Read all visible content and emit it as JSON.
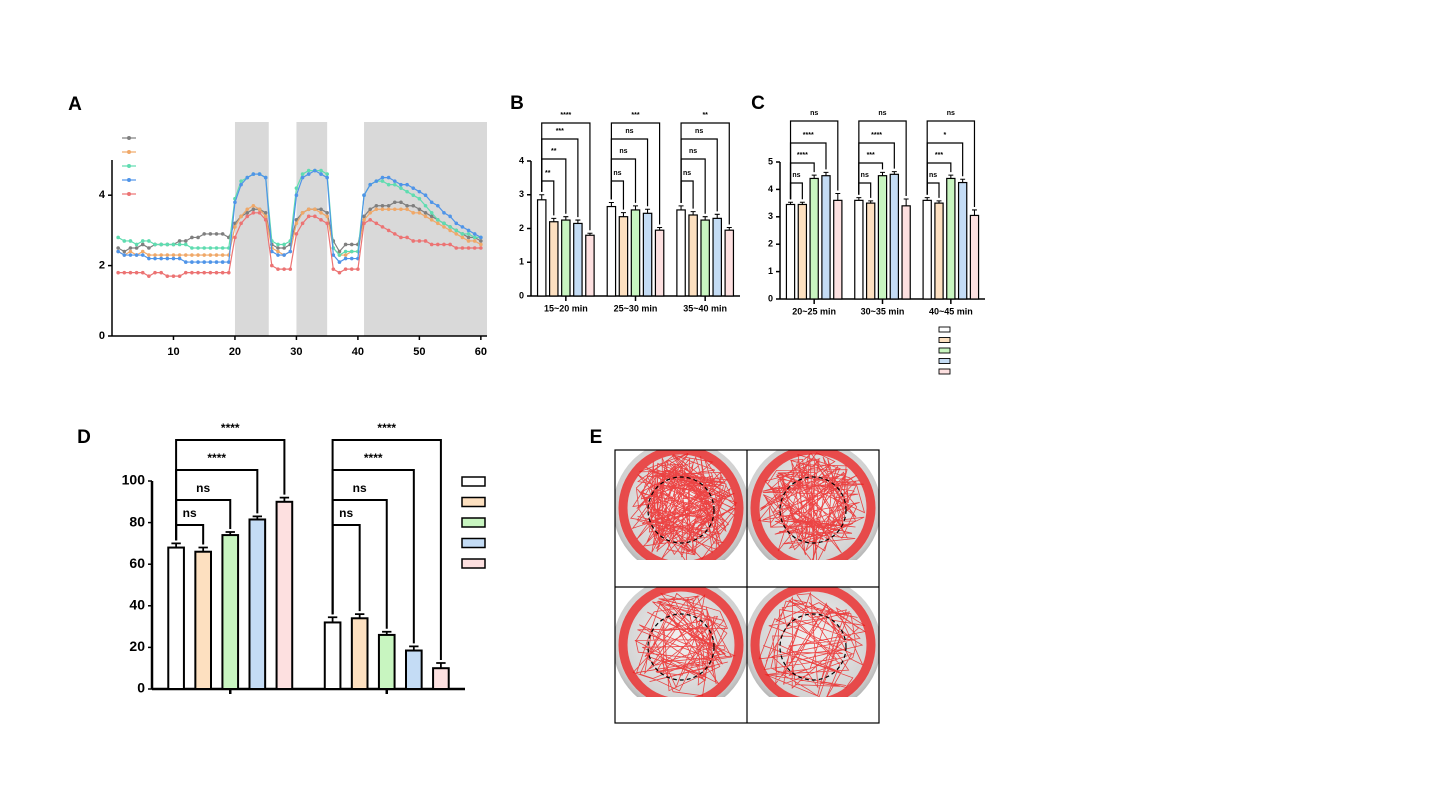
{
  "chart_data": [
    {
      "type": "line",
      "title": "A",
      "x": [
        1,
        2,
        3,
        4,
        5,
        6,
        7,
        8,
        9,
        10,
        11,
        12,
        13,
        14,
        15,
        16,
        17,
        18,
        19,
        20,
        21,
        22,
        23,
        24,
        25,
        26,
        27,
        28,
        29,
        30,
        31,
        32,
        33,
        34,
        35,
        36,
        37,
        38,
        39,
        40,
        41,
        42,
        43,
        44,
        45,
        46,
        47,
        48,
        49,
        50,
        51,
        52,
        53,
        54,
        55,
        56,
        57,
        58,
        59,
        60
      ],
      "xlim": [
        0,
        61
      ],
      "xticks": [
        10,
        20,
        30,
        40,
        50,
        60
      ],
      "ylim": [
        0,
        5
      ],
      "yticks": [
        0,
        2,
        4
      ],
      "shaded": [
        [
          20,
          25.5
        ],
        [
          30,
          35
        ],
        [
          41,
          61
        ]
      ],
      "series": [
        {
          "color": "#7f7f7f",
          "values": [
            2.5,
            2.4,
            2.5,
            2.5,
            2.6,
            2.5,
            2.6,
            2.6,
            2.6,
            2.6,
            2.7,
            2.7,
            2.8,
            2.8,
            2.9,
            2.9,
            2.9,
            2.9,
            2.8,
            3.2,
            3.4,
            3.5,
            3.6,
            3.6,
            3.5,
            2.6,
            2.5,
            2.5,
            2.6,
            3.3,
            3.5,
            3.6,
            3.6,
            3.6,
            3.5,
            2.7,
            2.4,
            2.6,
            2.6,
            2.6,
            3.4,
            3.6,
            3.7,
            3.7,
            3.7,
            3.8,
            3.8,
            3.7,
            3.7,
            3.6,
            3.5,
            3.4,
            3.3,
            3.2,
            3.1,
            3.0,
            2.9,
            2.8,
            2.8,
            2.7
          ]
        },
        {
          "color": "#f0a868",
          "values": [
            2.4,
            2.3,
            2.4,
            2.3,
            2.4,
            2.3,
            2.3,
            2.3,
            2.3,
            2.3,
            2.3,
            2.3,
            2.3,
            2.3,
            2.3,
            2.3,
            2.3,
            2.3,
            2.3,
            3.1,
            3.4,
            3.6,
            3.7,
            3.6,
            3.4,
            2.5,
            2.4,
            2.3,
            2.4,
            3.2,
            3.5,
            3.6,
            3.6,
            3.5,
            3.4,
            2.5,
            2.3,
            2.3,
            2.4,
            2.4,
            3.3,
            3.5,
            3.6,
            3.6,
            3.6,
            3.6,
            3.6,
            3.6,
            3.5,
            3.5,
            3.4,
            3.3,
            3.2,
            3.1,
            3.0,
            2.9,
            2.8,
            2.7,
            2.7,
            2.6
          ]
        },
        {
          "color": "#5fdcb0",
          "values": [
            2.8,
            2.7,
            2.7,
            2.6,
            2.7,
            2.7,
            2.6,
            2.6,
            2.6,
            2.6,
            2.6,
            2.6,
            2.5,
            2.5,
            2.5,
            2.5,
            2.5,
            2.5,
            2.5,
            3.9,
            4.4,
            4.5,
            4.6,
            4.6,
            4.5,
            2.7,
            2.6,
            2.6,
            2.7,
            4.2,
            4.6,
            4.7,
            4.7,
            4.7,
            4.6,
            2.5,
            2.3,
            2.4,
            2.4,
            2.4,
            4.0,
            4.3,
            4.4,
            4.4,
            4.3,
            4.3,
            4.2,
            4.1,
            4.0,
            3.9,
            3.7,
            3.5,
            3.3,
            3.2,
            3.1,
            3.0,
            2.9,
            2.9,
            2.8,
            2.8
          ]
        },
        {
          "color": "#4f94e8",
          "values": [
            2.4,
            2.3,
            2.3,
            2.3,
            2.3,
            2.2,
            2.2,
            2.2,
            2.2,
            2.2,
            2.2,
            2.1,
            2.1,
            2.1,
            2.1,
            2.1,
            2.1,
            2.1,
            2.1,
            3.8,
            4.3,
            4.5,
            4.6,
            4.6,
            4.5,
            2.4,
            2.3,
            2.3,
            2.4,
            4.0,
            4.5,
            4.6,
            4.7,
            4.6,
            4.5,
            2.3,
            2.1,
            2.2,
            2.2,
            2.2,
            4.0,
            4.3,
            4.4,
            4.5,
            4.5,
            4.4,
            4.3,
            4.3,
            4.2,
            4.1,
            4.0,
            3.8,
            3.7,
            3.5,
            3.4,
            3.2,
            3.1,
            3.0,
            2.9,
            2.8
          ]
        },
        {
          "color": "#ec7373",
          "values": [
            1.8,
            1.8,
            1.8,
            1.8,
            1.8,
            1.7,
            1.8,
            1.8,
            1.7,
            1.7,
            1.7,
            1.8,
            1.8,
            1.8,
            1.8,
            1.8,
            1.8,
            1.8,
            1.8,
            2.8,
            3.2,
            3.4,
            3.5,
            3.5,
            3.3,
            2.0,
            1.9,
            1.9,
            1.9,
            2.9,
            3.2,
            3.4,
            3.4,
            3.3,
            3.2,
            1.9,
            1.8,
            1.9,
            1.9,
            1.9,
            3.2,
            3.3,
            3.2,
            3.1,
            3.0,
            2.9,
            2.8,
            2.8,
            2.7,
            2.7,
            2.7,
            2.6,
            2.6,
            2.6,
            2.6,
            2.5,
            2.5,
            2.5,
            2.5,
            2.5
          ]
        }
      ]
    },
    {
      "type": "bar",
      "title": "B",
      "categories": [
        "15~20 min",
        "25~30 min",
        "35~40 min"
      ],
      "ylim": [
        0,
        4
      ],
      "yticks": [
        0,
        1,
        2,
        3,
        4
      ],
      "edge_color": "#000000",
      "series": [
        {
          "color": "#ffffff",
          "values": [
            2.85,
            2.65,
            2.55
          ],
          "errors": [
            0.15,
            0.12,
            0.12
          ]
        },
        {
          "color": "#fde0c0",
          "values": [
            2.2,
            2.35,
            2.4
          ],
          "errors": [
            0.1,
            0.12,
            0.1
          ]
        },
        {
          "color": "#c8f5c0",
          "values": [
            2.25,
            2.55,
            2.25
          ],
          "errors": [
            0.1,
            0.12,
            0.1
          ]
        },
        {
          "color": "#c4dcf5",
          "values": [
            2.15,
            2.45,
            2.3
          ],
          "errors": [
            0.1,
            0.12,
            0.12
          ]
        },
        {
          "color": "#fde0e0",
          "values": [
            1.8,
            1.95,
            1.95
          ],
          "errors": [
            0.06,
            0.08,
            0.08
          ]
        }
      ],
      "significance": [
        [
          "**",
          "**",
          "***",
          "****"
        ],
        [
          "ns",
          "ns",
          "ns",
          "***"
        ],
        [
          "ns",
          "ns",
          "ns",
          "**"
        ]
      ]
    },
    {
      "type": "bar",
      "title": "C",
      "categories": [
        "20~25 min",
        "30~35 min",
        "40~45 min"
      ],
      "ylim": [
        0,
        5
      ],
      "yticks": [
        0,
        1,
        2,
        3,
        4,
        5
      ],
      "edge_color": "#000000",
      "legend": true,
      "series": [
        {
          "color": "#ffffff",
          "values": [
            3.45,
            3.6,
            3.6
          ],
          "errors": [
            0.08,
            0.1,
            0.1
          ]
        },
        {
          "color": "#fde0c0",
          "values": [
            3.45,
            3.5,
            3.5
          ],
          "errors": [
            0.08,
            0.08,
            0.08
          ]
        },
        {
          "color": "#c8f5c0",
          "values": [
            4.4,
            4.5,
            4.4
          ],
          "errors": [
            0.12,
            0.12,
            0.12
          ]
        },
        {
          "color": "#c4dcf5",
          "values": [
            4.5,
            4.55,
            4.25
          ],
          "errors": [
            0.12,
            0.1,
            0.12
          ]
        },
        {
          "color": "#fde0e0",
          "values": [
            3.6,
            3.4,
            3.05
          ],
          "errors": [
            0.25,
            0.25,
            0.2
          ]
        }
      ],
      "significance": [
        [
          "ns",
          "****",
          "****",
          "ns"
        ],
        [
          "ns",
          "***",
          "****",
          "ns"
        ],
        [
          "ns",
          "***",
          "*",
          "ns"
        ]
      ]
    },
    {
      "type": "bar",
      "title": "D",
      "categories": [
        null,
        null
      ],
      "ylim": [
        0,
        100
      ],
      "yticks": [
        0,
        20,
        40,
        60,
        80,
        100
      ],
      "edge_color": "#000000",
      "legend": true,
      "series": [
        {
          "color": "#ffffff",
          "values": [
            68,
            32
          ],
          "errors": [
            2,
            2.5
          ]
        },
        {
          "color": "#fde0c0",
          "values": [
            66,
            34
          ],
          "errors": [
            2,
            2
          ]
        },
        {
          "color": "#c8f5c0",
          "values": [
            74,
            26
          ],
          "errors": [
            1.5,
            1.5
          ]
        },
        {
          "color": "#c4dcf5",
          "values": [
            81.5,
            18.5
          ],
          "errors": [
            1.5,
            2
          ]
        },
        {
          "color": "#fde0e0",
          "values": [
            90,
            10
          ],
          "errors": [
            2,
            2.5
          ]
        }
      ],
      "significance": [
        [
          "ns",
          "ns",
          "****",
          "****"
        ],
        [
          "ns",
          "ns",
          "****",
          "****"
        ]
      ]
    }
  ],
  "image_panel": {
    "title": "E"
  }
}
